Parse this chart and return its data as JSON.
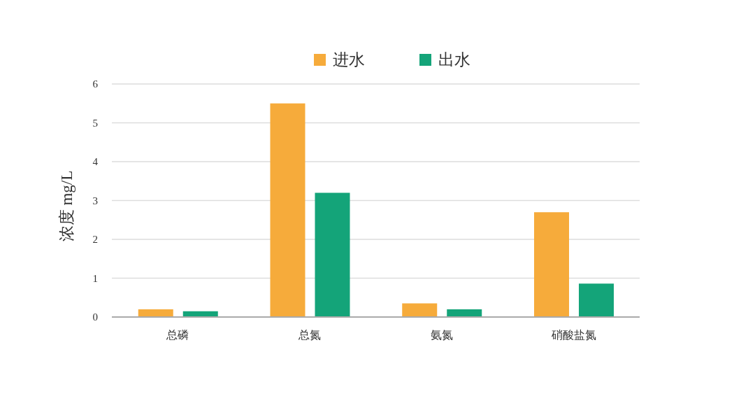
{
  "chart_data": {
    "type": "bar",
    "categories": [
      "总磷",
      "总氮",
      "氨氮",
      "硝酸盐氮"
    ],
    "series": [
      {
        "name": "进水",
        "color": "#f6ab3b",
        "values": [
          0.2,
          5.5,
          0.35,
          2.7
        ]
      },
      {
        "name": "出水",
        "color": "#14a479",
        "values": [
          0.15,
          3.2,
          0.2,
          0.86
        ]
      }
    ],
    "ylabel": "浓度 mg/L",
    "ylim": [
      0,
      6
    ],
    "yticks": [
      0,
      1,
      2,
      3,
      4,
      5,
      6
    ],
    "grid": "y",
    "legend": "top"
  }
}
